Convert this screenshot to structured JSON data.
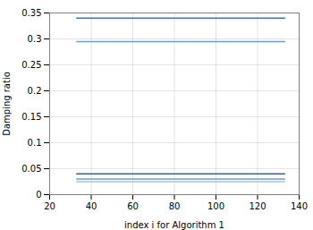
{
  "chart_data": {
    "type": "line",
    "xlabel": "index i for Algorithm 1",
    "ylabel": "Damping ratio",
    "x": [
      33,
      133
    ],
    "series": [
      {
        "color": "#4472C4",
        "values": [
          0.34,
          0.34
        ]
      },
      {
        "color": "#6B9ED4",
        "values": [
          0.295,
          0.295
        ]
      },
      {
        "color": "#3A5FA0",
        "values": [
          0.04,
          0.04
        ]
      },
      {
        "color": "#6B9ED4",
        "values": [
          0.03,
          0.03
        ]
      },
      {
        "color": "#A8C4E0",
        "values": [
          0.025,
          0.025
        ]
      }
    ],
    "xlim": [
      20,
      140
    ],
    "ylim": [
      0,
      0.35
    ],
    "xticks": [
      20,
      40,
      60,
      80,
      100,
      120,
      140
    ],
    "yticks": [
      0,
      0.05,
      0.1,
      0.15,
      0.2,
      0.25,
      0.3,
      0.35
    ],
    "grid": true
  }
}
